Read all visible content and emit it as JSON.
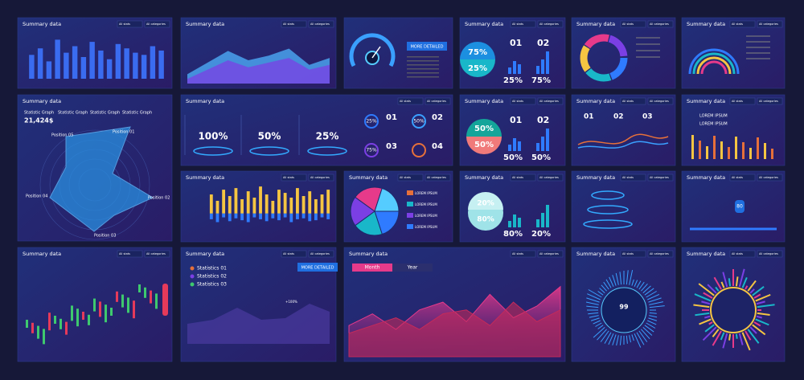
{
  "panels": [
    {
      "title": "Summary data",
      "filters": [
        "All stats",
        "All categories"
      ],
      "values": [
        55,
        70,
        40,
        90,
        60,
        75,
        50,
        85,
        65,
        45,
        80,
        70,
        60,
        55,
        75,
        65
      ],
      "ylim": [
        0,
        100
      ]
    },
    {
      "title": "Summary data",
      "filters": [
        "All stats",
        "All categories"
      ],
      "series": [
        {
          "values": [
            20,
            45,
            70,
            50,
            60,
            75,
            40,
            55
          ],
          "color": "#4fb3ff"
        },
        {
          "values": [
            10,
            30,
            50,
            35,
            45,
            55,
            30,
            40
          ],
          "color": "#7b3fe4"
        }
      ],
      "ylim": [
        0,
        100
      ]
    },
    {
      "texts": [
        "MORE DETAILED"
      ]
    },
    {
      "title": "Summary data",
      "filters": [
        "All stats",
        "All categories"
      ],
      "texts": [
        "75%",
        "25%",
        "01",
        "02",
        "25%",
        "75%"
      ]
    },
    {
      "title": "Summary data",
      "filters": [
        "All stats",
        "All categories"
      ]
    },
    {
      "title": "Summary data",
      "filters": [
        "All stats",
        "All categories"
      ]
    },
    {
      "title": "Summary data",
      "texts": [
        "Statistic Graph",
        "21,424$",
        "Statistic Graph",
        "Statistic Graph",
        "Statistic Graph",
        "Position 01",
        "Position 02",
        "Position 03",
        "Position 04",
        "Position 05"
      ]
    },
    {
      "title": "Summary data",
      "filters": [
        "All stats",
        "All categories"
      ],
      "texts": [
        "100%",
        "50%",
        "25%",
        "25%",
        "01",
        "50%",
        "02",
        "75%",
        "03",
        "04"
      ]
    },
    {
      "title": "Summary data",
      "filters": [
        "All stats",
        "All categories"
      ],
      "texts": [
        "50%",
        "50%",
        "01",
        "02",
        "50%",
        "50%"
      ]
    },
    {
      "title": "Summary data",
      "filters": [
        "All stats",
        "All categories"
      ],
      "texts": [
        "01",
        "02",
        "03"
      ]
    },
    {
      "title": "Summary data",
      "filters": [
        "All stats",
        "All categories"
      ],
      "texts": [
        "LOREM IPSUM",
        "LOREM IPSUM"
      ]
    },
    {
      "title": "Summary data",
      "filters": [
        "All stats",
        "All categories"
      ],
      "series": [
        {
          "values": [
            60,
            40,
            75,
            55,
            80,
            45,
            70,
            50,
            85,
            60,
            40,
            75,
            65,
            50,
            80,
            55,
            70,
            45,
            60,
            75
          ],
          "color": "#f5c542"
        },
        {
          "values": [
            30,
            45,
            20,
            40,
            25,
            35,
            45,
            20,
            30,
            40,
            25,
            35,
            20,
            45,
            30,
            25,
            40,
            35,
            20,
            30
          ],
          "color": "#2f7bff"
        }
      ],
      "ylim": [
        0,
        100
      ]
    },
    {
      "title": "Summary data",
      "filters": [
        "All stats",
        "All categories"
      ],
      "texts": [
        "LOREM IPSUM",
        "LOREM IPSUM",
        "LOREM IPSUM",
        "LOREM IPSUM"
      ]
    },
    {
      "title": "Summary data",
      "filters": [
        "All stats",
        "All categories"
      ],
      "texts": [
        "20%",
        "80%",
        "80%",
        "20%"
      ]
    },
    {
      "title": "Summary data",
      "filters": [
        "All stats",
        "All categories"
      ]
    },
    {
      "title": "Summary data",
      "filters": [
        "All stats",
        "All categories"
      ],
      "texts": [
        "80"
      ]
    },
    {
      "title": "Summary data",
      "filters": [
        "All stats",
        "All categories"
      ]
    },
    {
      "title": "Summary data",
      "filters": [
        "All stats",
        "All categories"
      ],
      "texts": [
        "Statistics 01",
        "Statistics 02",
        "Statistics 03",
        "MORE DETAILED",
        "+100%"
      ]
    },
    {
      "title": "Summary data",
      "filters": [
        "All stats",
        "All categories"
      ],
      "texts": [
        "Month",
        "Year"
      ],
      "series": [
        {
          "values": [
            40,
            55,
            35,
            60,
            70,
            45,
            80,
            50,
            65,
            90
          ],
          "color": "#e63a8a"
        },
        {
          "values": [
            30,
            40,
            50,
            35,
            55,
            60,
            40,
            70,
            45,
            60
          ],
          "color": "#c42a5a"
        }
      ],
      "ylim": [
        0,
        100
      ]
    },
    {
      "title": "Summary data",
      "filters": [
        "All stats",
        "All categories"
      ],
      "texts": [
        "99"
      ]
    },
    {
      "title": "Summary data",
      "filters": [
        "All stats",
        "All categories"
      ]
    }
  ]
}
